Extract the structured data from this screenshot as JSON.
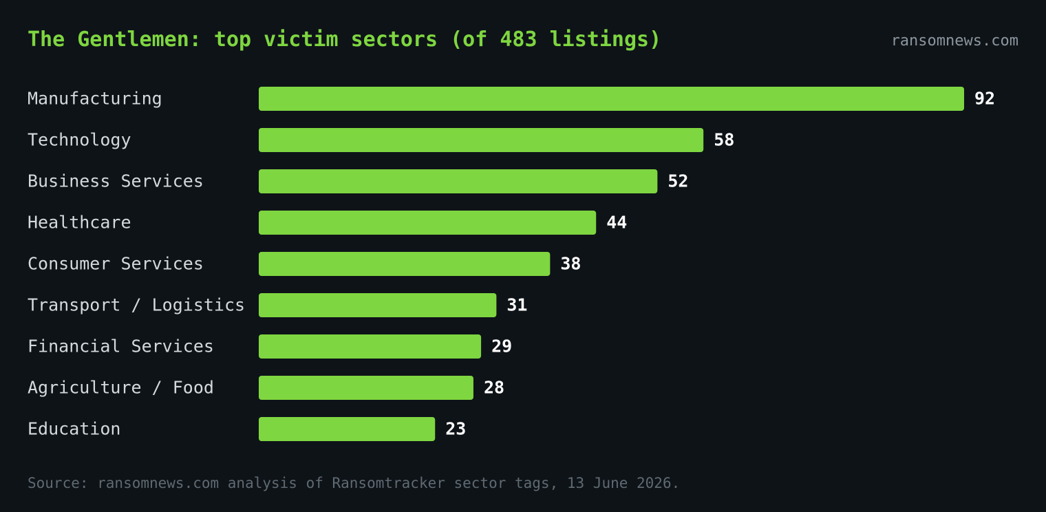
{
  "header": {
    "title": "The Gentlemen: top victim sectors (of 483 listings)",
    "site": "ransomnews.com"
  },
  "footer": {
    "source": "Source: ransomnews.com analysis of Ransomtracker sector tags, 13 June 2026."
  },
  "colors": {
    "background": "#0e1318",
    "bar": "#7ed640",
    "title": "#7ed640",
    "category_text": "#d4d9dd",
    "value_text": "#ffffff",
    "muted_text": "#8c969e"
  },
  "chart_data": {
    "type": "bar",
    "orientation": "horizontal",
    "title": "The Gentlemen: top victim sectors (of 483 listings)",
    "categories": [
      "Manufacturing",
      "Technology",
      "Business Services",
      "Healthcare",
      "Consumer Services",
      "Transport / Logistics",
      "Financial Services",
      "Agriculture / Food",
      "Education"
    ],
    "values": [
      92,
      58,
      52,
      44,
      38,
      31,
      29,
      28,
      23
    ],
    "xlim": [
      0,
      92
    ],
    "grid": false,
    "data_labels": true
  }
}
